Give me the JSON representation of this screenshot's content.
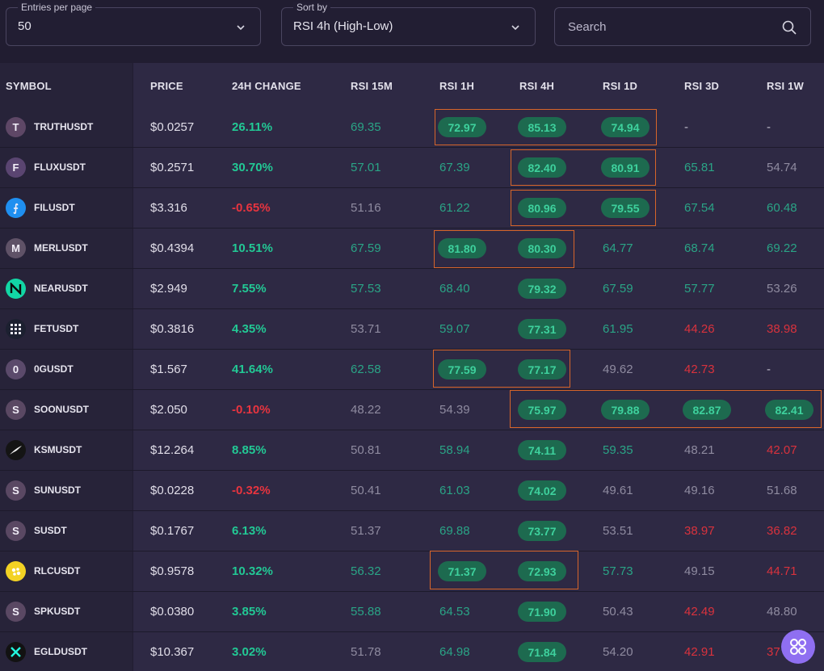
{
  "controls": {
    "entries": {
      "label": "Entries per page",
      "value": "50"
    },
    "sort": {
      "label": "Sort by",
      "value": "RSI 4h (High-Low)"
    },
    "search": {
      "placeholder": "Search"
    }
  },
  "columns": [
    "SYMBOL",
    "PRICE",
    "24H CHANGE",
    "RSI 15M",
    "RSI 1H",
    "RSI 4H",
    "RSI 1D",
    "RSI 3D",
    "RSI 1W"
  ],
  "colors": {
    "green": "#2aa486",
    "red": "#d9323d",
    "gray": "#8f8ba0",
    "pill_bg": "#1d6a4f",
    "highlight": "#d7652a"
  },
  "rows": [
    {
      "symbol": "TRUTHUSDT",
      "icon": "letter-t-icon",
      "avatar": "T",
      "price": "$0.0257",
      "change": "26.11%",
      "r15m": "69.35",
      "r1h": "72.97",
      "r4h": "85.13",
      "r1d": "74.94",
      "r3d": "-",
      "r1w": "-"
    },
    {
      "symbol": "FLUXUSDT",
      "icon": "letter-f-icon",
      "avatar": "F",
      "price": "$0.2571",
      "change": "30.70%",
      "r15m": "57.01",
      "r1h": "67.39",
      "r4h": "82.40",
      "r1d": "80.91",
      "r3d": "65.81",
      "r1w": "54.74"
    },
    {
      "symbol": "FILUSDT",
      "icon": "filecoin-icon",
      "avatar": "⨍",
      "price": "$3.316",
      "change": "-0.65%",
      "r15m": "51.16",
      "r1h": "61.22",
      "r4h": "80.96",
      "r1d": "79.55",
      "r3d": "67.54",
      "r1w": "60.48"
    },
    {
      "symbol": "MERLUSDT",
      "icon": "letter-m-icon",
      "avatar": "M",
      "price": "$0.4394",
      "change": "10.51%",
      "r15m": "67.59",
      "r1h": "81.80",
      "r4h": "80.30",
      "r1d": "64.77",
      "r3d": "68.74",
      "r1w": "69.22"
    },
    {
      "symbol": "NEARUSDT",
      "icon": "near-icon",
      "avatar": "N",
      "price": "$2.949",
      "change": "7.55%",
      "r15m": "57.53",
      "r1h": "68.40",
      "r4h": "79.32",
      "r1d": "67.59",
      "r3d": "57.77",
      "r1w": "53.26"
    },
    {
      "symbol": "FETUSDT",
      "icon": "fetch-grid-icon",
      "avatar": "",
      "price": "$0.3816",
      "change": "4.35%",
      "r15m": "53.71",
      "r1h": "59.07",
      "r4h": "77.31",
      "r1d": "61.95",
      "r3d": "44.26",
      "r1w": "38.98"
    },
    {
      "symbol": "0GUSDT",
      "icon": "letter-0-icon",
      "avatar": "0",
      "price": "$1.567",
      "change": "41.64%",
      "r15m": "62.58",
      "r1h": "77.59",
      "r4h": "77.17",
      "r1d": "49.62",
      "r3d": "42.73",
      "r1w": "-"
    },
    {
      "symbol": "SOONUSDT",
      "icon": "letter-s-icon",
      "avatar": "S",
      "price": "$2.050",
      "change": "-0.10%",
      "r15m": "48.22",
      "r1h": "54.39",
      "r4h": "75.97",
      "r1d": "79.88",
      "r3d": "82.87",
      "r1w": "82.41"
    },
    {
      "symbol": "KSMUSDT",
      "icon": "kusama-bird-icon",
      "avatar": "",
      "price": "$12.264",
      "change": "8.85%",
      "r15m": "50.81",
      "r1h": "58.94",
      "r4h": "74.11",
      "r1d": "59.35",
      "r3d": "48.21",
      "r1w": "42.07"
    },
    {
      "symbol": "SUNUSDT",
      "icon": "letter-s-icon",
      "avatar": "S",
      "price": "$0.0228",
      "change": "-0.32%",
      "r15m": "50.41",
      "r1h": "61.03",
      "r4h": "74.02",
      "r1d": "49.61",
      "r3d": "49.16",
      "r1w": "51.68"
    },
    {
      "symbol": "SUSDT",
      "icon": "letter-s-icon",
      "avatar": "S",
      "price": "$0.1767",
      "change": "6.13%",
      "r15m": "51.37",
      "r1h": "69.88",
      "r4h": "73.77",
      "r1d": "53.51",
      "r3d": "38.97",
      "r1w": "36.82"
    },
    {
      "symbol": "RLCUSDT",
      "icon": "iexec-icon",
      "avatar": "",
      "price": "$0.9578",
      "change": "10.32%",
      "r15m": "56.32",
      "r1h": "71.37",
      "r4h": "72.93",
      "r1d": "57.73",
      "r3d": "49.15",
      "r1w": "44.71"
    },
    {
      "symbol": "SPKUSDT",
      "icon": "letter-s-icon",
      "avatar": "S",
      "price": "$0.0380",
      "change": "3.85%",
      "r15m": "55.88",
      "r1h": "64.53",
      "r4h": "71.90",
      "r1d": "50.43",
      "r3d": "42.49",
      "r1w": "48.80"
    },
    {
      "symbol": "EGLDUSDT",
      "icon": "multiversx-icon",
      "avatar": "",
      "price": "$10.367",
      "change": "3.02%",
      "r15m": "51.78",
      "r1h": "64.98",
      "r4h": "71.84",
      "r1d": "54.20",
      "r3d": "42.91",
      "r1w": "37"
    }
  ]
}
